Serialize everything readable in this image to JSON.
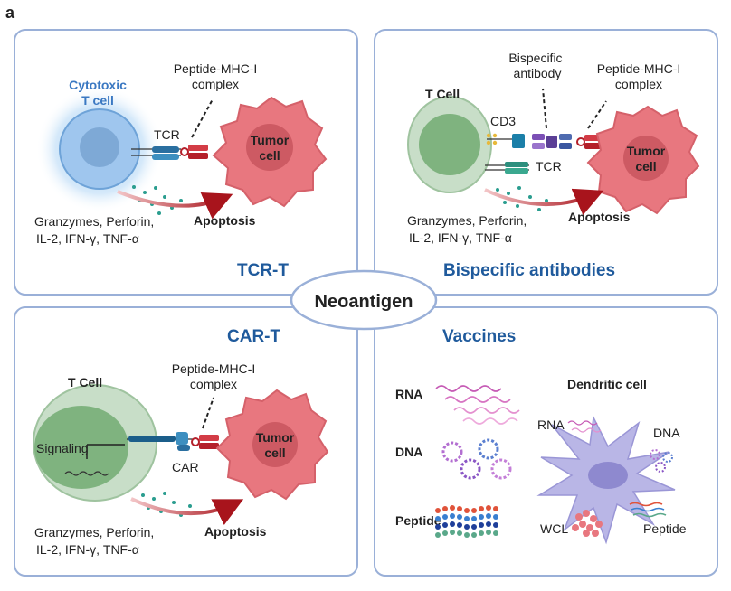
{
  "panel_label": "a",
  "center": {
    "label": "Neoantigen"
  },
  "colors": {
    "panel_border": "#9ab0d8",
    "title": "#1f5a9c",
    "tumor": "#e8777f",
    "tumor_nucleus": "#c9575f",
    "tcell_green": "#a9cfa9",
    "tcell_blue": "#8fb8e6",
    "arrow": "#b01c24"
  },
  "panels": {
    "tcr_t": {
      "title": "TCR-T",
      "cell_label_line1": "Cytotoxic",
      "cell_label_line2": "T cell",
      "receptor_label": "TCR",
      "complex_line1": "Peptide-MHC-I",
      "complex_line2": "complex",
      "tumor_line1": "Tumor",
      "tumor_line2": "cell",
      "outcome": "Apoptosis",
      "cytokines_line1": "Granzymes, Perforin,",
      "cytokines_line2": "IL-2, IFN-γ, TNF-α"
    },
    "bispecific": {
      "title": "Bispecific antibodies",
      "cell_label": "T Cell",
      "cd3_label": "CD3",
      "receptor_label": "TCR",
      "antibody_line1": "Bispecific",
      "antibody_line2": "antibody",
      "complex_line1": "Peptide-MHC-I",
      "complex_line2": "complex",
      "tumor_line1": "Tumor",
      "tumor_line2": "cell",
      "outcome": "Apoptosis",
      "cytokines_line1": "Granzymes, Perforin,",
      "cytokines_line2": "IL-2, IFN-γ, TNF-α"
    },
    "car_t": {
      "title": "CAR-T",
      "cell_label": "T Cell",
      "signal_label": "Signaling",
      "receptor_label": "CAR",
      "complex_line1": "Peptide-MHC-I",
      "complex_line2": "complex",
      "tumor_line1": "Tumor",
      "tumor_line2": "cell",
      "outcome": "Apoptosis",
      "cytokines_line1": "Granzymes, Perforin,",
      "cytokines_line2": "IL-2, IFN-γ, TNF-α"
    },
    "vaccines": {
      "title": "Vaccines",
      "left_labels": {
        "rna": "RNA",
        "dna": "DNA",
        "peptide": "Peptide"
      },
      "dendritic_title": "Dendritic cell",
      "dendritic_labels": {
        "rna": "RNA",
        "dna": "DNA",
        "wcl": "WCL",
        "peptide": "Peptide"
      }
    }
  }
}
